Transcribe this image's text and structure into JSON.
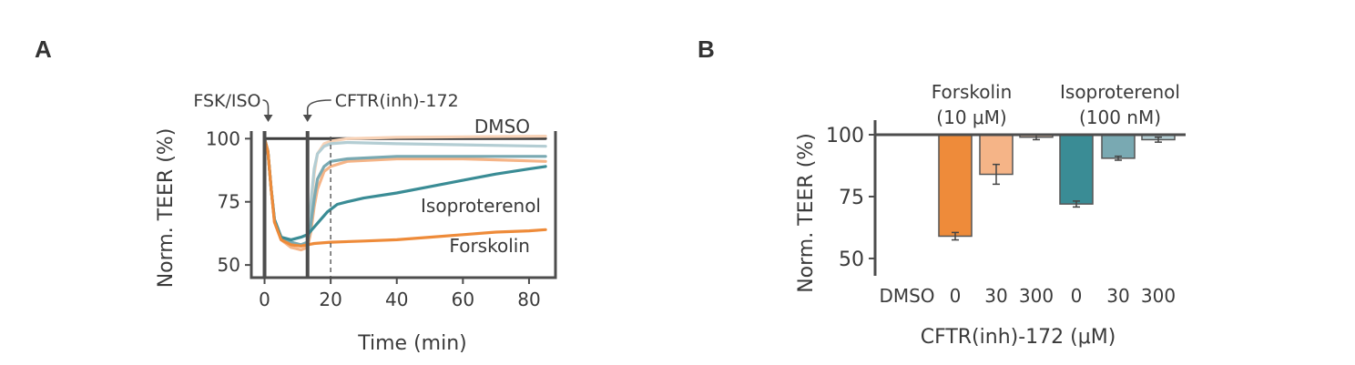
{
  "figure": {
    "panel_a_letter": "A",
    "panel_b_letter": "B"
  },
  "colors": {
    "axis": "#4d4d4d",
    "dmso": "#3d3d3d",
    "forskolin_dark": "#ee8b3a",
    "forskolin_light": "#f5b487",
    "forskolin_lighter": "#f8d2b6",
    "iso_dark": "#3a8c95",
    "iso_mid": "#79a9b2",
    "iso_light": "#b3cdd3"
  },
  "chart_data": [
    {
      "panel": "A",
      "type": "line",
      "title": "",
      "xlabel": "Time (min)",
      "ylabel": "Norm. TEER (%)",
      "xlim": [
        -4,
        88
      ],
      "ylim": [
        45,
        103
      ],
      "xticks": [
        0,
        20,
        40,
        60,
        80
      ],
      "yticks": [
        50,
        75,
        100
      ],
      "grid": false,
      "annotations": [
        {
          "text": "FSK/ISO",
          "x": 0
        },
        {
          "text": "CFTR(inh)-172",
          "x": 13
        },
        {
          "text": "DMSO",
          "x": 80,
          "y": 100
        },
        {
          "text": "Isoproterenol",
          "x": 65,
          "y": 81
        },
        {
          "text": "Forskolin",
          "x": 71,
          "y": 62
        }
      ],
      "series": [
        {
          "name": "DMSO",
          "color_key": "dmso",
          "x": [
            0,
            85
          ],
          "y": [
            100,
            100
          ]
        },
        {
          "color_key": "forskolin_lighter",
          "x": [
            0,
            1,
            2,
            3,
            5,
            8,
            11,
            13,
            14,
            15,
            16,
            18,
            20,
            25,
            40,
            85
          ],
          "y": [
            100,
            95,
            80,
            67,
            60,
            57,
            56,
            57,
            70,
            86,
            94,
            98,
            99,
            100,
            100.5,
            101
          ]
        },
        {
          "color_key": "iso_light",
          "x": [
            0,
            1,
            2,
            3,
            5,
            8,
            11,
            13,
            14,
            15,
            16,
            18,
            20,
            25,
            40,
            85
          ],
          "y": [
            100,
            95,
            80,
            68,
            61,
            59,
            58,
            59,
            74,
            88,
            94,
            97,
            98,
            98.5,
            98,
            97
          ]
        },
        {
          "color_key": "forskolin_light",
          "x": [
            0,
            1,
            2,
            3,
            5,
            8,
            11,
            13,
            14,
            15,
            16,
            18,
            20,
            25,
            40,
            60,
            85
          ],
          "y": [
            100,
            95,
            80,
            67,
            60,
            57,
            56,
            57,
            63,
            73,
            80,
            87,
            89,
            91,
            92,
            92,
            91
          ]
        },
        {
          "color_key": "iso_mid",
          "x": [
            0,
            1,
            2,
            3,
            5,
            8,
            11,
            13,
            14,
            15,
            16,
            18,
            20,
            25,
            40,
            85
          ],
          "y": [
            100,
            95,
            80,
            68,
            61,
            59,
            58,
            59,
            66,
            76,
            84,
            89,
            91,
            92,
            93,
            93
          ]
        },
        {
          "name": "Isoproterenol",
          "color_key": "iso_dark",
          "x": [
            0,
            1,
            2,
            3,
            5,
            8,
            11,
            13,
            15,
            17,
            19,
            22,
            25,
            30,
            40,
            50,
            60,
            70,
            80,
            85
          ],
          "y": [
            100,
            95,
            80,
            68,
            61,
            60,
            61,
            62,
            65,
            68,
            71,
            74,
            75,
            76.5,
            78.5,
            81,
            83.5,
            86,
            88,
            89
          ]
        },
        {
          "name": "Forskolin",
          "color_key": "forskolin_dark",
          "x": [
            0,
            1,
            2,
            3,
            5,
            8,
            11,
            13,
            15,
            20,
            30,
            40,
            50,
            60,
            70,
            80,
            85
          ],
          "y": [
            100,
            95,
            80,
            67,
            60,
            58,
            57.5,
            58,
            58.5,
            59,
            59.5,
            60,
            61,
            62,
            63,
            63.5,
            64
          ]
        }
      ],
      "vlines": [
        {
          "x": 0,
          "style": "solid"
        },
        {
          "x": 13,
          "style": "solid"
        },
        {
          "x": 20,
          "style": "dashed"
        }
      ]
    },
    {
      "panel": "B",
      "type": "bar",
      "title": "",
      "xlabel": "CFTR(inh)-172 (μM)",
      "ylabel": "Norm. TEER (%)",
      "ylim": [
        43,
        100
      ],
      "yticks": [
        50,
        75,
        100
      ],
      "grid": false,
      "baseline": 100,
      "categories": [
        "DMSO",
        "0",
        "30",
        "300",
        "0",
        "30",
        "300"
      ],
      "group_labels": [
        {
          "line1": "Forskolin",
          "line2": "(10 μM)"
        },
        {
          "line1": "Isoproterenol",
          "line2": "(100 nM)"
        }
      ],
      "values": [
        100,
        59,
        84,
        99,
        72,
        90.5,
        98
      ],
      "errors": [
        0,
        1.5,
        4,
        1,
        1.2,
        0.8,
        1
      ],
      "bar_color_keys": [
        "dmso",
        "forskolin_dark",
        "forskolin_light",
        "forskolin_lighter",
        "iso_dark",
        "iso_mid",
        "iso_light"
      ]
    }
  ]
}
